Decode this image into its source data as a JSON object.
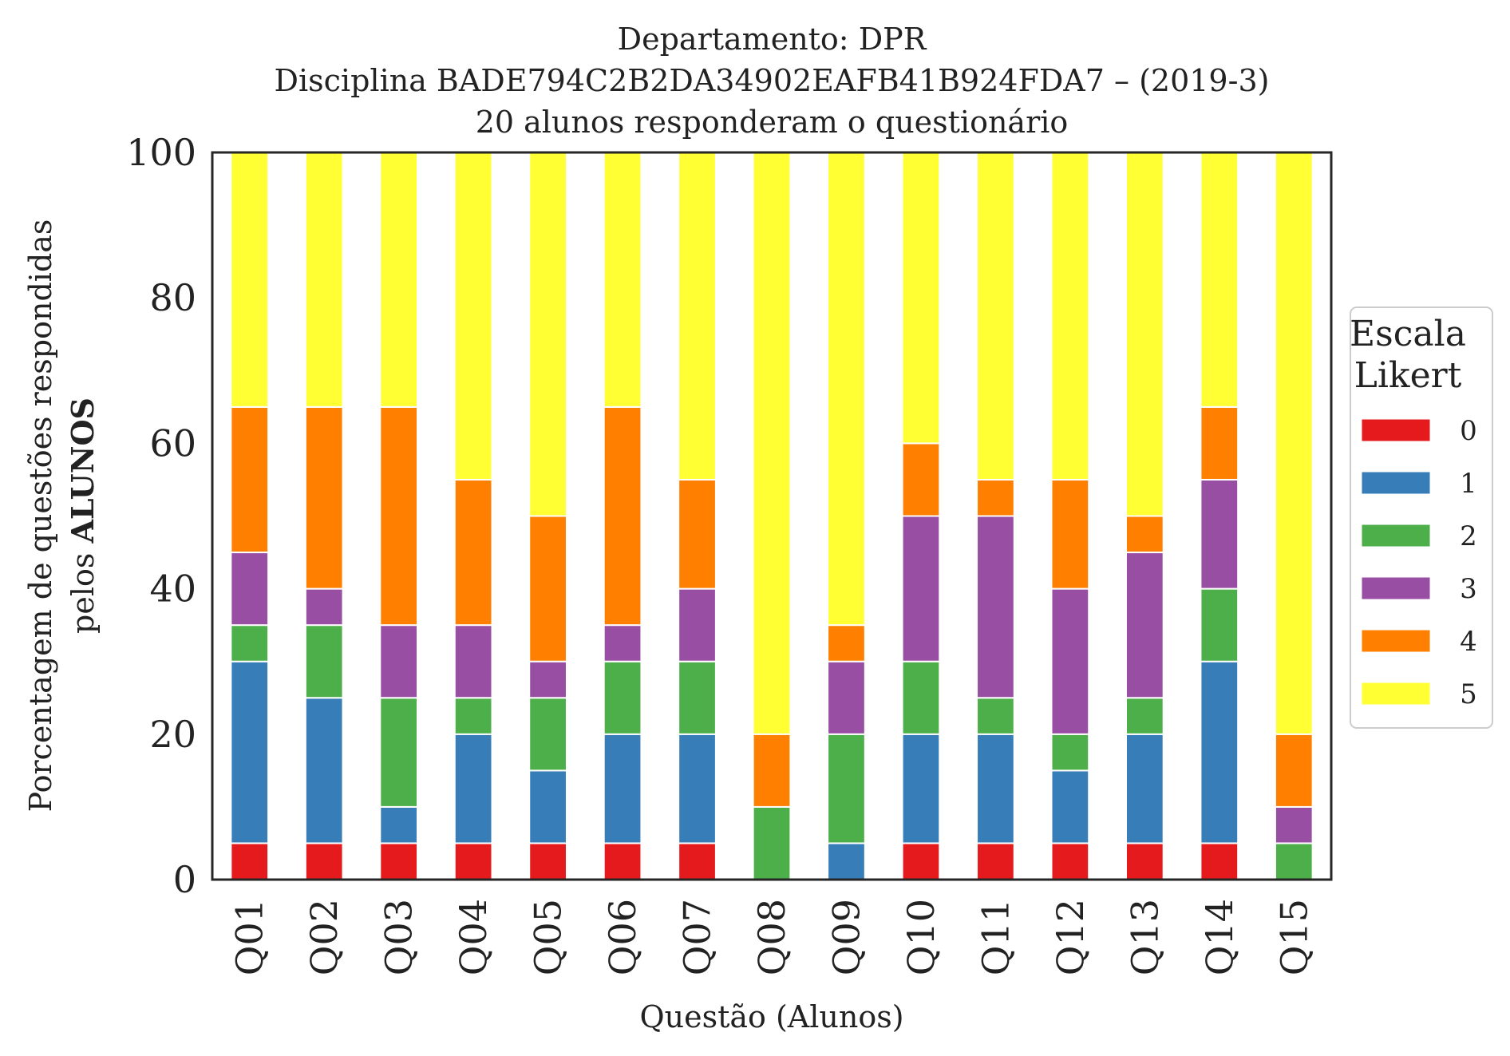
{
  "chart_data": {
    "type": "bar",
    "stacked": true,
    "title": [
      "Departamento: DPR",
      "Disciplina BADE794C2B2DA34902EAFB41B924FDA7 – (2019-3)",
      "20 alunos responderam o questionário"
    ],
    "xlabel": "Questão (Alunos)",
    "ylabel": [
      "Porcentagem de questões respondidas",
      "pelos ",
      "ALUNOS"
    ],
    "ylim": [
      0,
      100
    ],
    "yticks": [
      "0",
      "20",
      "40",
      "60",
      "80",
      "100"
    ],
    "grid": false,
    "legend": {
      "title": [
        "Escala",
        "Likert"
      ],
      "placement": "right"
    },
    "categories": [
      "Q01",
      "Q02",
      "Q03",
      "Q04",
      "Q05",
      "Q06",
      "Q07",
      "Q08",
      "Q09",
      "Q10",
      "Q11",
      "Q12",
      "Q13",
      "Q14",
      "Q15"
    ],
    "series": [
      {
        "name": "0",
        "color": "#e41a1c",
        "values": [
          5,
          5,
          5,
          5,
          5,
          5,
          5,
          0,
          0,
          5,
          5,
          5,
          5,
          5,
          0
        ]
      },
      {
        "name": "1",
        "color": "#377eb8",
        "values": [
          25,
          20,
          5,
          15,
          10,
          15,
          15,
          0,
          5,
          15,
          15,
          10,
          15,
          25,
          0
        ]
      },
      {
        "name": "2",
        "color": "#4daf4a",
        "values": [
          5,
          10,
          15,
          5,
          10,
          10,
          10,
          10,
          15,
          10,
          5,
          5,
          5,
          10,
          5
        ]
      },
      {
        "name": "3",
        "color": "#984ea3",
        "values": [
          10,
          5,
          10,
          10,
          5,
          5,
          10,
          0,
          10,
          20,
          25,
          20,
          20,
          15,
          5
        ]
      },
      {
        "name": "4",
        "color": "#ff7f00",
        "values": [
          20,
          25,
          30,
          20,
          20,
          30,
          15,
          10,
          5,
          10,
          5,
          15,
          5,
          10,
          10
        ]
      },
      {
        "name": "5",
        "color": "#ffff33",
        "values": [
          35,
          35,
          35,
          45,
          50,
          35,
          45,
          80,
          65,
          40,
          45,
          45,
          50,
          35,
          80
        ]
      }
    ]
  }
}
